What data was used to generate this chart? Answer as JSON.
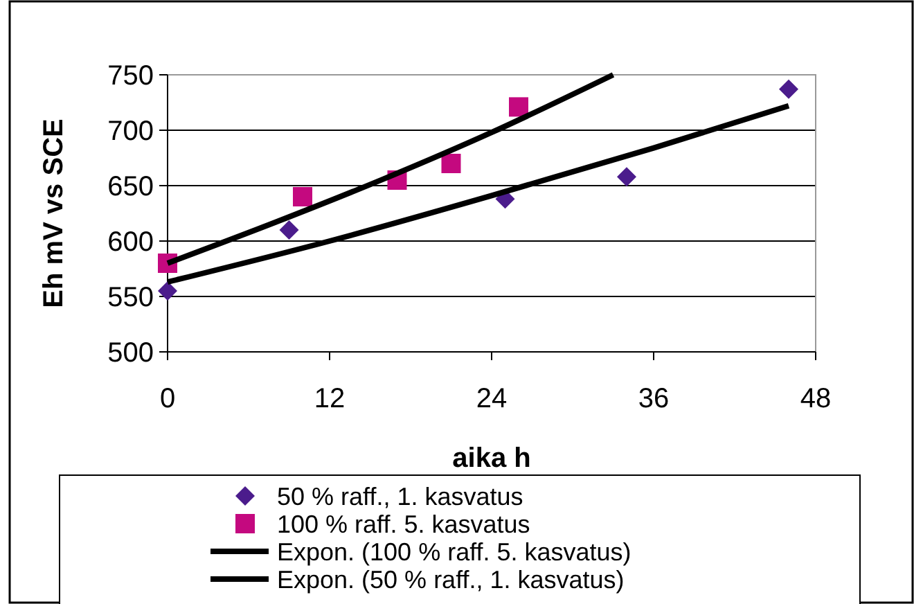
{
  "chart_data": {
    "type": "scatter",
    "xlabel": "aika h",
    "ylabel": "Eh mV vs SCE",
    "xlim": [
      0,
      48
    ],
    "xticks": [
      0,
      12,
      24,
      36,
      48
    ],
    "ylim": [
      500,
      750
    ],
    "yticks": [
      500,
      550,
      600,
      650,
      700,
      750
    ],
    "grid": "y",
    "legend": "bottom",
    "series": [
      {
        "name": "50 % raff., 1. kasvatus",
        "color": "#4b1c8c",
        "marker": "diamond",
        "x": [
          0,
          9,
          25,
          34,
          46
        ],
        "values": [
          555,
          610,
          638,
          658,
          737
        ]
      },
      {
        "name": "100 % raff. 5. kasvatus",
        "color": "#c4097f",
        "marker": "square",
        "x": [
          0,
          10,
          17,
          21,
          26
        ],
        "values": [
          580,
          640,
          655,
          670,
          721
        ]
      },
      {
        "name": "Expon. (100 % raff. 5. kasvatus)",
        "type": "line",
        "color": "#000000",
        "marker": "none",
        "line_style": "solid",
        "x": [
          0,
          8,
          16,
          24,
          33
        ],
        "values": [
          580,
          617,
          656,
          698,
          750
        ]
      },
      {
        "name": "Expon. (50 % raff., 1. kasvatus)",
        "type": "line",
        "color": "#000000",
        "marker": "none",
        "line_style": "solid",
        "x": [
          0,
          12,
          24,
          36,
          46
        ],
        "values": [
          563,
          600,
          641,
          684,
          722
        ]
      }
    ]
  }
}
